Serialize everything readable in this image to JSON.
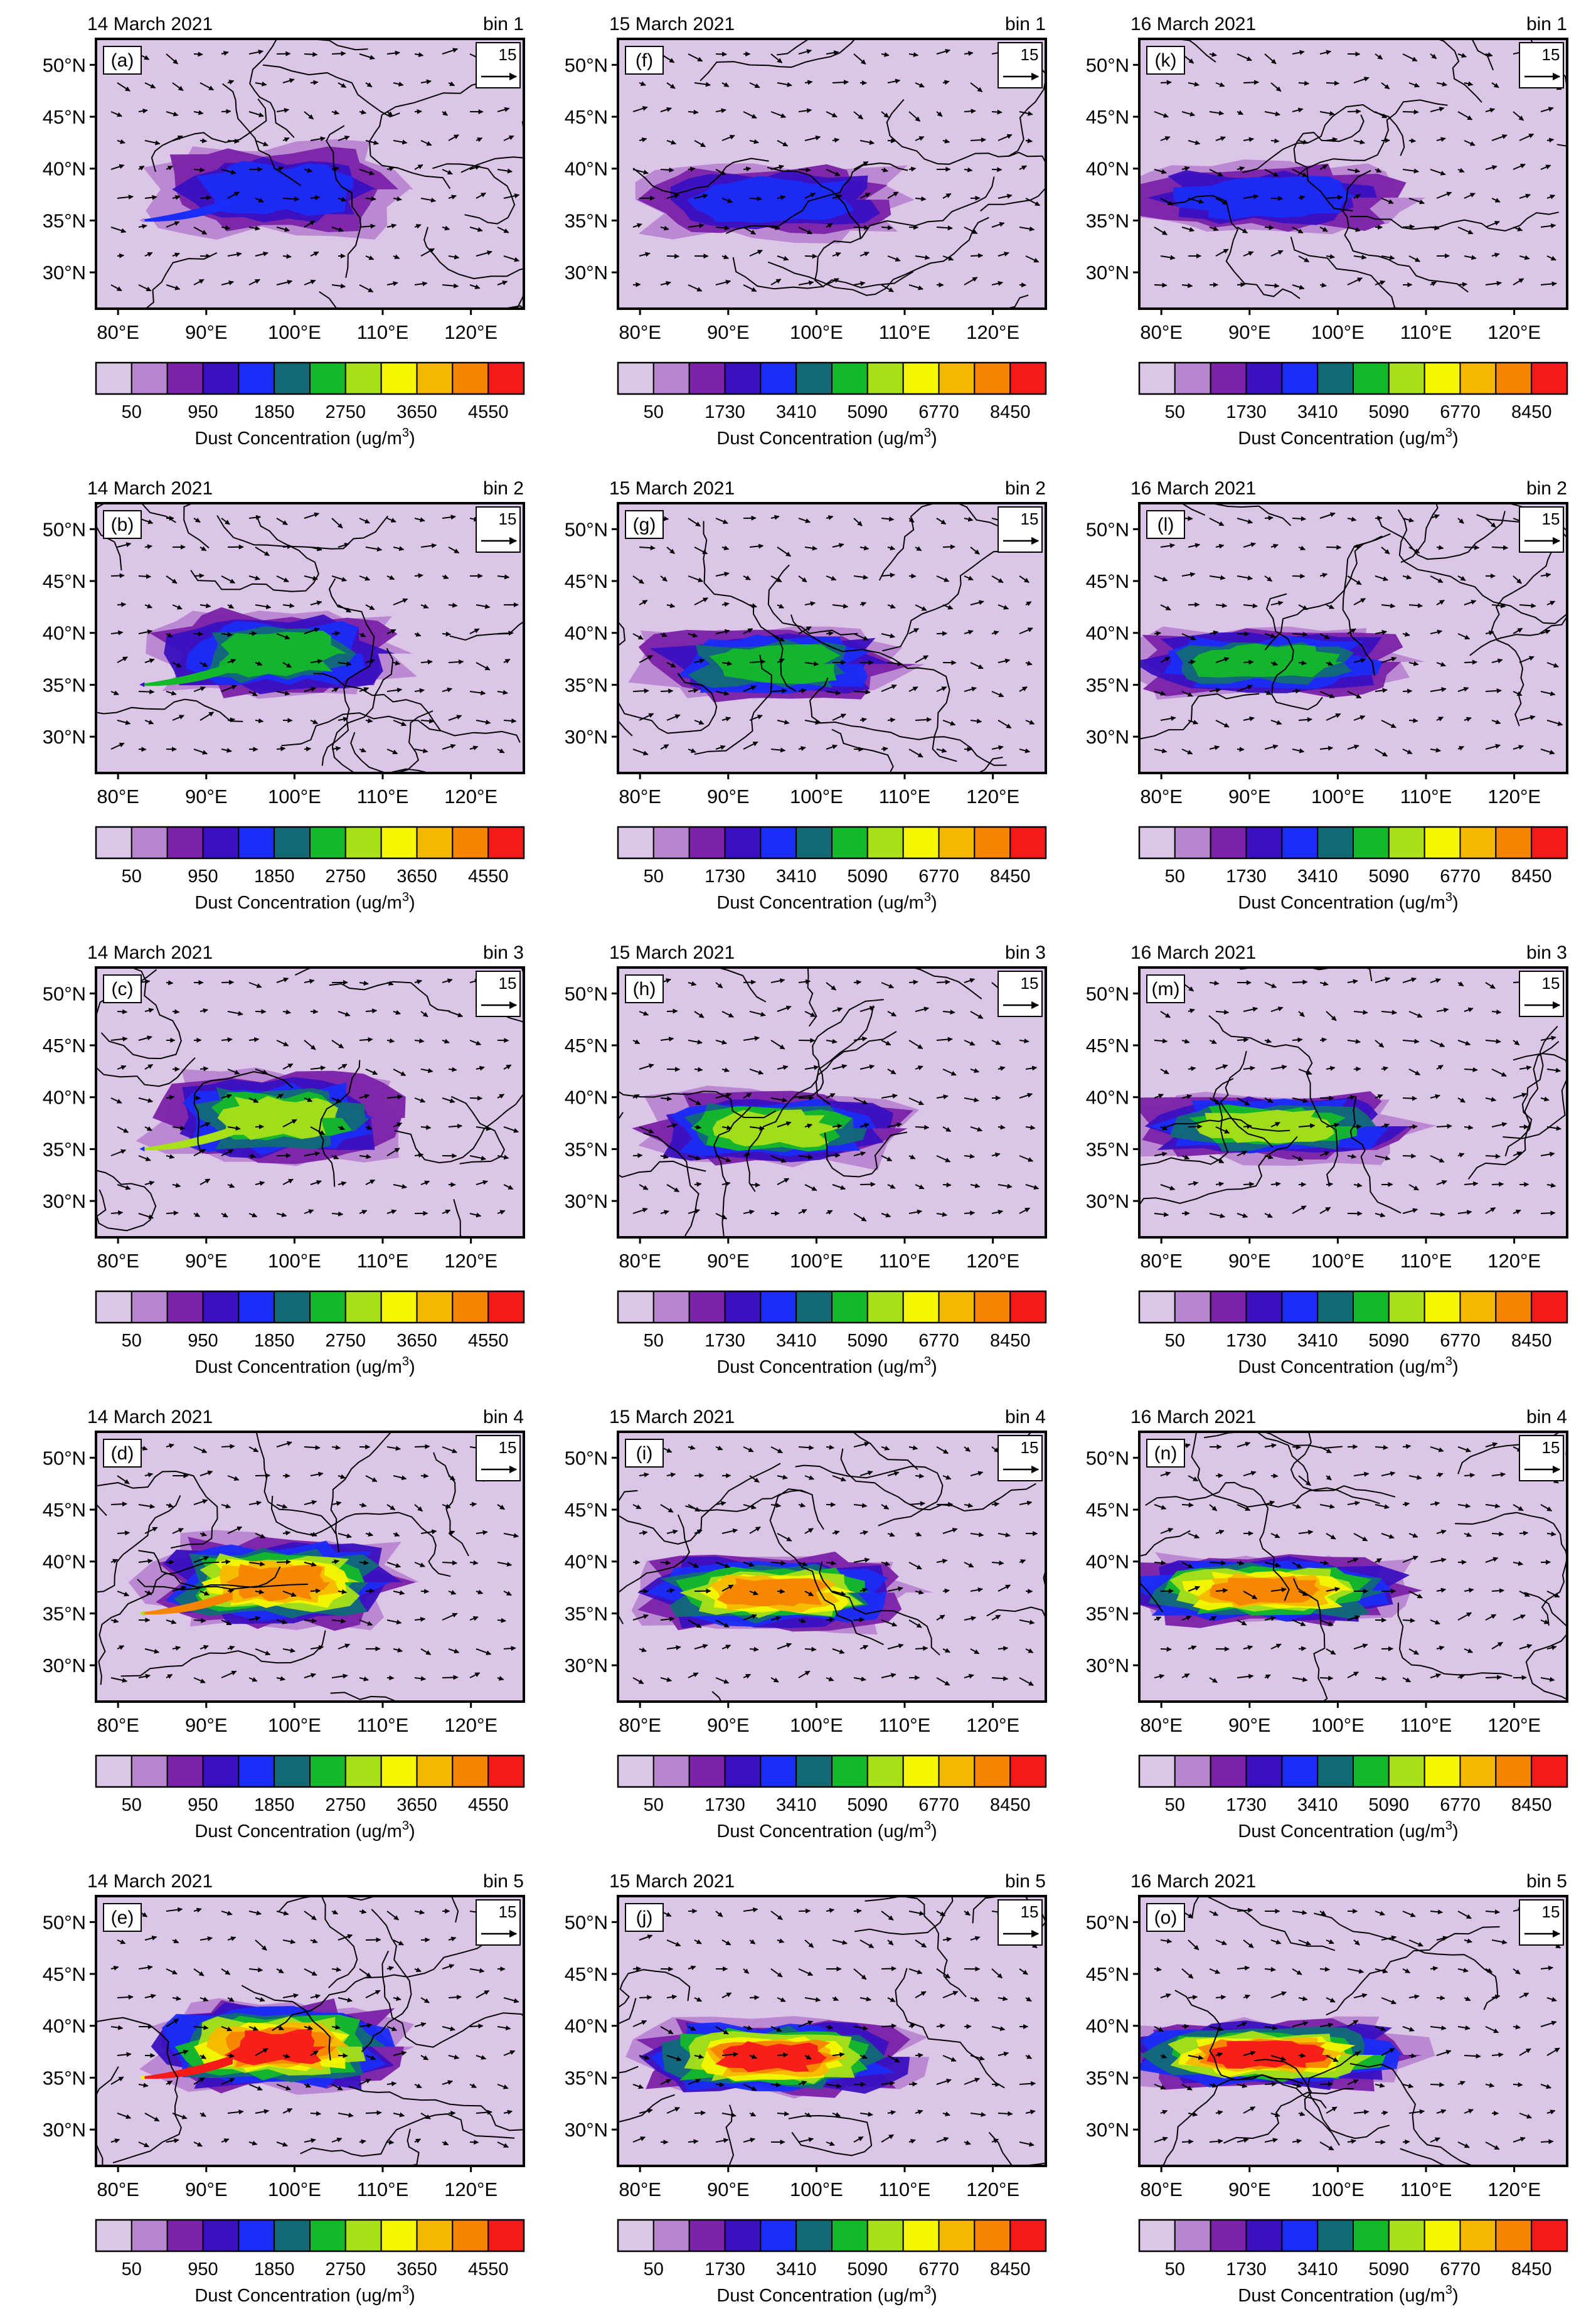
{
  "chart_data": {
    "type": "map-grid",
    "colorbar_label": "Dust Concentration (ug/m",
    "colorbar_label_sup": "3",
    "colorbar_label_close": ")",
    "colors": [
      "#dcc6e8",
      "#b886d0",
      "#7a22a8",
      "#3a10c0",
      "#1a2cf5",
      "#136a76",
      "#14b82a",
      "#a8e01a",
      "#f6f600",
      "#f5b800",
      "#f58400",
      "#f51a1a"
    ],
    "lat_labels": [
      "50°N",
      "45°N",
      "40°N",
      "35°N",
      "30°N"
    ],
    "lat_values": [
      50,
      45,
      40,
      35,
      30
    ],
    "lon_labels": [
      "80°E",
      "90°E",
      "100°E",
      "110°E",
      "120°E"
    ],
    "lon_values": [
      80,
      90,
      100,
      110,
      120
    ],
    "lon_range": [
      77.5,
      126
    ],
    "lat_range": [
      26.5,
      52.5
    ],
    "vector_ref_label": "15",
    "dates": [
      "14 March 2021",
      "15 March 2021",
      "16 March 2021"
    ],
    "bins": [
      "bin 1",
      "bin 2",
      "bin 3",
      "bin 4",
      "bin 5"
    ],
    "colorbar_ticks": [
      [
        "50",
        "950",
        "1850",
        "2750",
        "3650",
        "4550"
      ],
      [
        "50",
        "1730",
        "3410",
        "5090",
        "6770",
        "8450"
      ],
      [
        "50",
        "1730",
        "3410",
        "5090",
        "6770",
        "8450"
      ]
    ],
    "panels": [
      {
        "letter": "(a)",
        "date": "14 March 2021",
        "bin": "bin 1"
      },
      {
        "letter": "(f)",
        "date": "15 March 2021",
        "bin": "bin 1"
      },
      {
        "letter": "(k)",
        "date": "16 March 2021",
        "bin": "bin 1"
      },
      {
        "letter": "(b)",
        "date": "14 March 2021",
        "bin": "bin 2"
      },
      {
        "letter": "(g)",
        "date": "15 March 2021",
        "bin": "bin 2"
      },
      {
        "letter": "(l)",
        "date": "16 March 2021",
        "bin": "bin 2"
      },
      {
        "letter": "(c)",
        "date": "14 March 2021",
        "bin": "bin 3"
      },
      {
        "letter": "(h)",
        "date": "15 March 2021",
        "bin": "bin 3"
      },
      {
        "letter": "(m)",
        "date": "16 March 2021",
        "bin": "bin 3"
      },
      {
        "letter": "(d)",
        "date": "14 March 2021",
        "bin": "bin 4"
      },
      {
        "letter": "(i)",
        "date": "15 March 2021",
        "bin": "bin 4"
      },
      {
        "letter": "(n)",
        "date": "16 March 2021",
        "bin": "bin 4"
      },
      {
        "letter": "(e)",
        "date": "14 March 2021",
        "bin": "bin 5"
      },
      {
        "letter": "(j)",
        "date": "15 March 2021",
        "bin": "bin 5"
      },
      {
        "letter": "(o)",
        "date": "16 March 2021",
        "bin": "bin 5"
      }
    ]
  }
}
